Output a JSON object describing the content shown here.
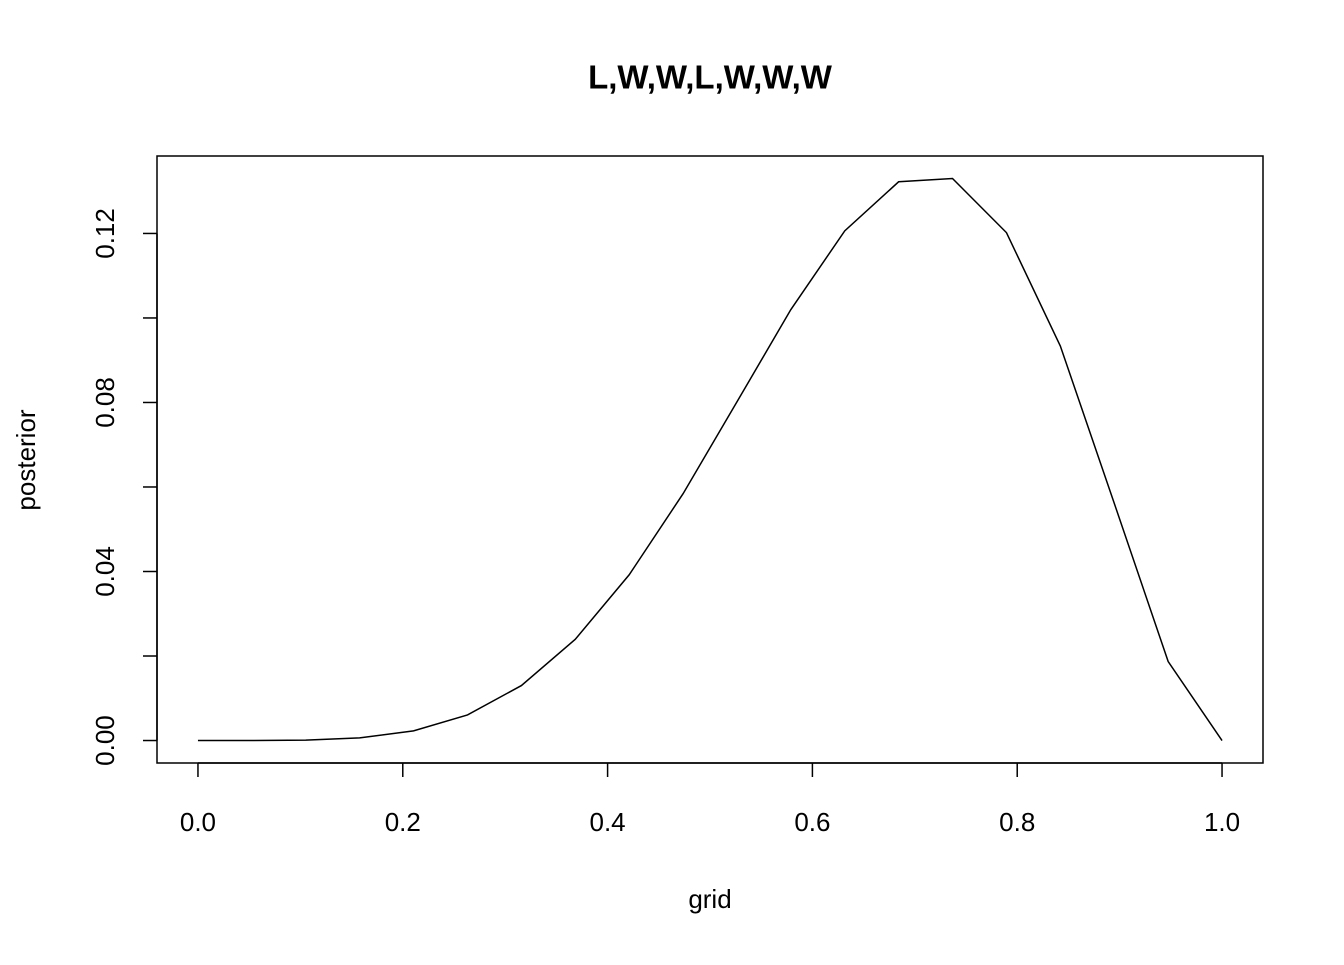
{
  "chart_data": {
    "type": "line",
    "title": "L,W,W,L,W,W,W",
    "xlabel": "grid",
    "ylabel": "posterior",
    "x": [
      0,
      0.0526,
      0.1053,
      0.1579,
      0.2105,
      0.2632,
      0.3158,
      0.3684,
      0.4211,
      0.4737,
      0.5263,
      0.5789,
      0.6316,
      0.6842,
      0.7368,
      0.7895,
      0.8421,
      0.8947,
      0.9474,
      1
    ],
    "values": [
      0,
      3e-06,
      9e-05,
      0.00062,
      0.00228,
      0.00606,
      0.013,
      0.02394,
      0.03922,
      0.05841,
      0.08013,
      0.10196,
      0.12062,
      0.13223,
      0.13301,
      0.12019,
      0.09336,
      0.05618,
      0.01869,
      0
    ],
    "color": "#000000",
    "xlim": [
      -0.04,
      1.04
    ],
    "xticks": [
      {
        "value": 0,
        "label": "0.0"
      },
      {
        "value": 0.2,
        "label": "0.2"
      },
      {
        "value": 0.4,
        "label": "0.4"
      },
      {
        "value": 0.6,
        "label": "0.6"
      },
      {
        "value": 0.8,
        "label": "0.8"
      },
      {
        "value": 1,
        "label": "1.0"
      }
    ],
    "ylim": [
      -0.00532,
      0.13833
    ],
    "yticks": [
      {
        "value": 0,
        "label": "0.00"
      },
      {
        "value": 0.02,
        "label": null
      },
      {
        "value": 0.04,
        "label": "0.04"
      },
      {
        "value": 0.06,
        "label": null
      },
      {
        "value": 0.08,
        "label": "0.08"
      },
      {
        "value": 0.1,
        "label": null
      },
      {
        "value": 0.12,
        "label": "0.12"
      }
    ],
    "grid": false
  }
}
